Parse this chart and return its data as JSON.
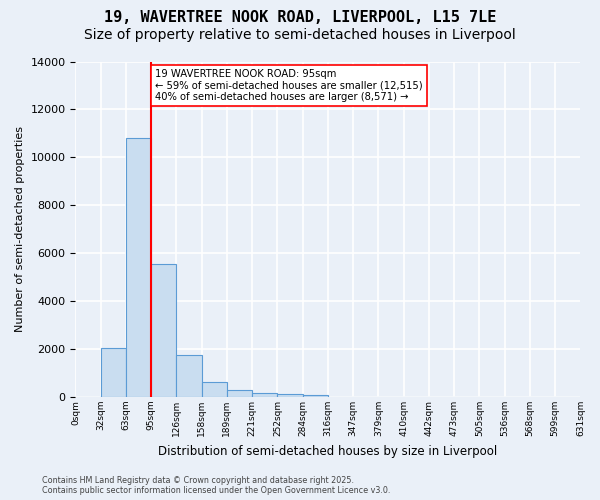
{
  "title_line1": "19, WAVERTREE NOOK ROAD, LIVERPOOL, L15 7LE",
  "title_line2": "Size of property relative to semi-detached houses in Liverpool",
  "xlabel": "Distribution of semi-detached houses by size in Liverpool",
  "ylabel": "Number of semi-detached properties",
  "bin_labels": [
    "0sqm",
    "32sqm",
    "63sqm",
    "95sqm",
    "126sqm",
    "158sqm",
    "189sqm",
    "221sqm",
    "252sqm",
    "284sqm",
    "316sqm",
    "347sqm",
    "379sqm",
    "410sqm",
    "442sqm",
    "473sqm",
    "505sqm",
    "536sqm",
    "568sqm",
    "599sqm",
    "631sqm"
  ],
  "bar_values": [
    0,
    2050,
    10800,
    5550,
    1750,
    620,
    310,
    180,
    120,
    80,
    0,
    0,
    0,
    0,
    0,
    0,
    0,
    0,
    0,
    0
  ],
  "bar_color": "#c9ddf0",
  "bar_edge_color": "#5b9bd5",
  "red_line_x": 3,
  "annotation_text": "19 WAVERTREE NOOK ROAD: 95sqm\n← 59% of semi-detached houses are smaller (12,515)\n40% of semi-detached houses are larger (8,571) →",
  "ylim": [
    0,
    14000
  ],
  "yticks": [
    0,
    2000,
    4000,
    6000,
    8000,
    10000,
    12000,
    14000
  ],
  "footer_line1": "Contains HM Land Registry data © Crown copyright and database right 2025.",
  "footer_line2": "Contains public sector information licensed under the Open Government Licence v3.0.",
  "background_color": "#eaf0f8",
  "plot_background_color": "#eaf0f8",
  "grid_color": "#ffffff",
  "title_fontsize": 11,
  "subtitle_fontsize": 10
}
